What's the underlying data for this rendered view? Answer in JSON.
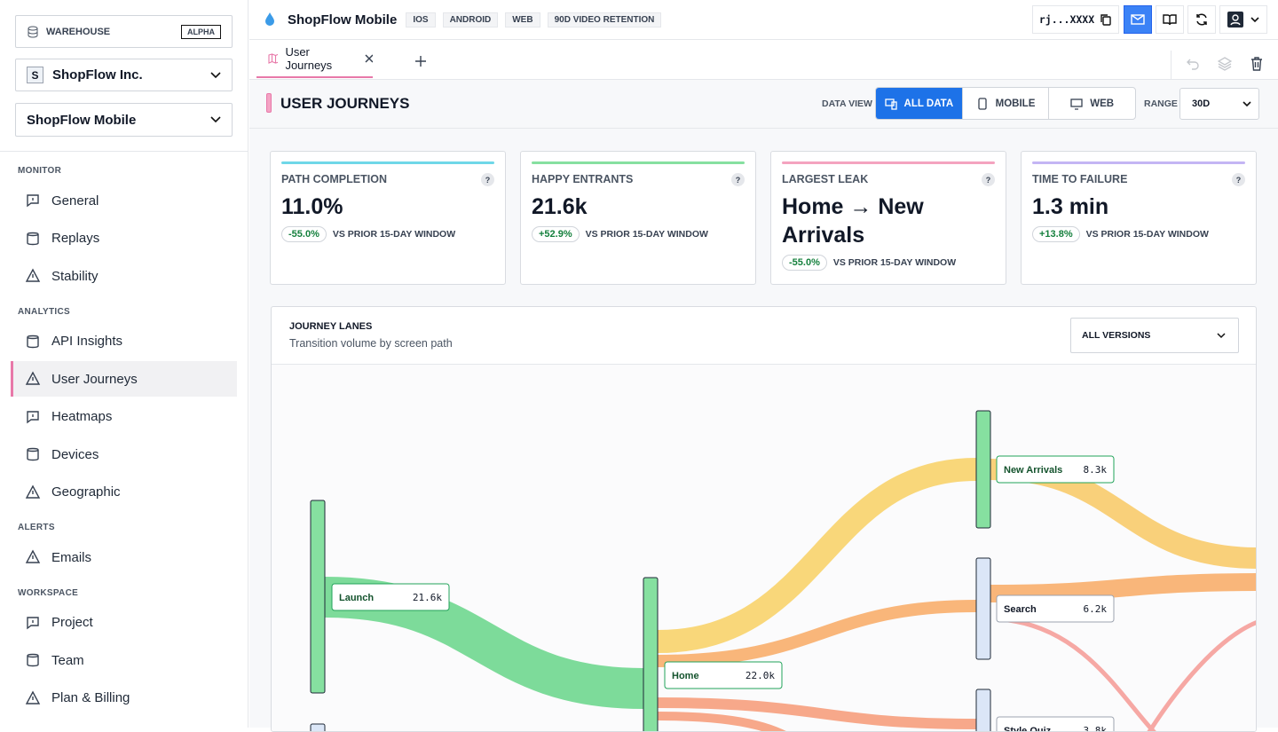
{
  "sidebar": {
    "warehouse": {
      "label": "WAREHOUSE",
      "badge": "ALPHA"
    },
    "org": {
      "initial": "S",
      "name": "ShopFlow Inc."
    },
    "project": "ShopFlow Mobile",
    "sections": [
      {
        "title": "MONITOR",
        "items": [
          "General",
          "Replays",
          "Stability"
        ]
      },
      {
        "title": "ANALYTICS",
        "items": [
          "API Insights",
          "User Journeys",
          "Heatmaps",
          "Devices",
          "Geographic"
        ]
      },
      {
        "title": "ALERTS",
        "items": [
          "Emails"
        ]
      },
      {
        "title": "WORKSPACE",
        "items": [
          "Project",
          "Team",
          "Plan & Billing"
        ]
      }
    ]
  },
  "topbar": {
    "app": "ShopFlow Mobile",
    "tags": [
      "IOS",
      "ANDROID",
      "WEB",
      "90D VIDEO RETENTION"
    ],
    "key": "rj...XXXX"
  },
  "tabs": [
    "User Journeys"
  ],
  "page": {
    "title": "USER JOURNEYS",
    "data_view_label": "DATA VIEW",
    "data_view_options": [
      "ALL DATA",
      "MOBILE",
      "WEB"
    ],
    "range_label": "RANGE",
    "range": "30D"
  },
  "cards": [
    {
      "label": "PATH COMPLETION",
      "value": "11.0%",
      "delta": "-55.0%",
      "compare": "VS PRIOR 15-DAY WINDOW"
    },
    {
      "label": "HAPPY ENTRANTS",
      "value": "21.6k",
      "delta": "+52.9%",
      "compare": "VS PRIOR 15-DAY WINDOW"
    },
    {
      "label": "LARGEST LEAK",
      "value": "Home → New Arrivals",
      "delta": "-55.0%",
      "compare": "VS PRIOR 15-DAY WINDOW"
    },
    {
      "label": "TIME TO FAILURE",
      "value": "1.3 min",
      "delta": "+13.8%",
      "compare": "VS PRIOR 15-DAY WINDOW"
    }
  ],
  "journey": {
    "title": "JOURNEY LANES",
    "subtitle": "Transition volume by screen path",
    "filter": "ALL VERSIONS",
    "nodes": [
      {
        "label": "Launch",
        "value": "21.6k"
      },
      {
        "label": "Home",
        "value": "22.0k"
      },
      {
        "label": "New Arrivals",
        "value": "8.3k"
      },
      {
        "label": "Search",
        "value": "6.2k"
      },
      {
        "label": "Style Quiz",
        "value": "3.8k"
      }
    ]
  }
}
